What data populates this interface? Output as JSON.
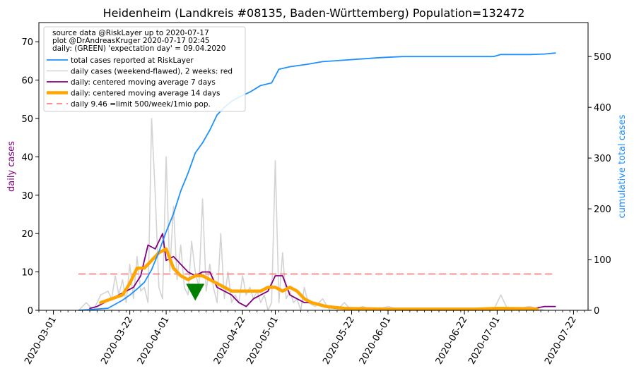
{
  "chart_data": {
    "type": "line",
    "title": "Heidenheim (Landkreis #08135, Baden-Württemberg) Population=132472",
    "ylabel_left": "daily cases",
    "ylabel_right": "cumulative total cases",
    "ylim_left": [
      0,
      75
    ],
    "ylim_right": [
      0,
      567
    ],
    "xlim": [
      "2020-02-26",
      "2020-07-26"
    ],
    "grid": false,
    "legend_placement": "top-left",
    "yticks_left": [
      "0",
      "10",
      "20",
      "30",
      "40",
      "50",
      "60",
      "70"
    ],
    "yticks_right": [
      "0",
      "100",
      "200",
      "300",
      "400",
      "500"
    ],
    "xticks": [
      "2020-03-01",
      "2020-03-22",
      "2020-04-01",
      "2020-04-22",
      "2020-05-01",
      "2020-05-22",
      "2020-06-01",
      "2020-06-22",
      "2020-07-01",
      "2020-07-22"
    ],
    "legend_header": [
      "source data @RiskLayer up to 2020-07-17",
      "plot @DrAndreasKruger 2020-07-17 02:45",
      "daily: (GREEN) 'expectation day' = 09.04.2020"
    ],
    "series": [
      {
        "name": "total cases reported at RiskLayer",
        "axis": "right",
        "color": "#1e90ff",
        "points": [
          [
            "2020-03-08",
            0
          ],
          [
            "2020-03-12",
            2
          ],
          [
            "2020-03-16",
            4
          ],
          [
            "2020-03-18",
            12
          ],
          [
            "2020-03-20",
            20
          ],
          [
            "2020-03-22",
            30
          ],
          [
            "2020-03-24",
            42
          ],
          [
            "2020-03-26",
            55
          ],
          [
            "2020-03-28",
            80
          ],
          [
            "2020-03-30",
            115
          ],
          [
            "2020-04-01",
            155
          ],
          [
            "2020-04-03",
            190
          ],
          [
            "2020-04-05",
            235
          ],
          [
            "2020-04-07",
            270
          ],
          [
            "2020-04-09",
            310
          ],
          [
            "2020-04-11",
            330
          ],
          [
            "2020-04-13",
            355
          ],
          [
            "2020-04-15",
            385
          ],
          [
            "2020-04-17",
            400
          ],
          [
            "2020-04-19",
            412
          ],
          [
            "2020-04-21",
            420
          ],
          [
            "2020-04-24",
            430
          ],
          [
            "2020-04-27",
            443
          ],
          [
            "2020-04-30",
            448
          ],
          [
            "2020-05-02",
            475
          ],
          [
            "2020-05-05",
            480
          ],
          [
            "2020-05-10",
            485
          ],
          [
            "2020-05-14",
            490
          ],
          [
            "2020-05-18",
            492
          ],
          [
            "2020-05-24",
            495
          ],
          [
            "2020-05-30",
            498
          ],
          [
            "2020-06-05",
            500
          ],
          [
            "2020-06-20",
            500
          ],
          [
            "2020-06-30",
            500
          ],
          [
            "2020-07-02",
            504
          ],
          [
            "2020-07-10",
            504
          ],
          [
            "2020-07-14",
            505
          ],
          [
            "2020-07-17",
            507
          ]
        ]
      },
      {
        "name": "daily cases (weekend-flawed), 2 weeks: red",
        "axis": "left",
        "color": "#d3d3d3",
        "points": [
          [
            "2020-03-08",
            0
          ],
          [
            "2020-03-10",
            2
          ],
          [
            "2020-03-12",
            0
          ],
          [
            "2020-03-14",
            4
          ],
          [
            "2020-03-16",
            5
          ],
          [
            "2020-03-17",
            3
          ],
          [
            "2020-03-18",
            9
          ],
          [
            "2020-03-19",
            4
          ],
          [
            "2020-03-20",
            8
          ],
          [
            "2020-03-21",
            2
          ],
          [
            "2020-03-22",
            12
          ],
          [
            "2020-03-23",
            3
          ],
          [
            "2020-03-24",
            14
          ],
          [
            "2020-03-25",
            5
          ],
          [
            "2020-03-26",
            6
          ],
          [
            "2020-03-27",
            2
          ],
          [
            "2020-03-28",
            50
          ],
          [
            "2020-03-29",
            30
          ],
          [
            "2020-03-30",
            6
          ],
          [
            "2020-03-31",
            3
          ],
          [
            "2020-04-01",
            40
          ],
          [
            "2020-04-02",
            10
          ],
          [
            "2020-04-03",
            27
          ],
          [
            "2020-04-04",
            8
          ],
          [
            "2020-04-05",
            17
          ],
          [
            "2020-04-06",
            6
          ],
          [
            "2020-04-07",
            4
          ],
          [
            "2020-04-08",
            18
          ],
          [
            "2020-04-09",
            10
          ],
          [
            "2020-04-10",
            6
          ],
          [
            "2020-04-11",
            29
          ],
          [
            "2020-04-12",
            5
          ],
          [
            "2020-04-13",
            12
          ],
          [
            "2020-04-14",
            6
          ],
          [
            "2020-04-15",
            2
          ],
          [
            "2020-04-16",
            20
          ],
          [
            "2020-04-17",
            3
          ],
          [
            "2020-04-18",
            10
          ],
          [
            "2020-04-19",
            2
          ],
          [
            "2020-04-20",
            4
          ],
          [
            "2020-04-21",
            2
          ],
          [
            "2020-04-22",
            9
          ],
          [
            "2020-04-23",
            4
          ],
          [
            "2020-04-24",
            6
          ],
          [
            "2020-04-25",
            3
          ],
          [
            "2020-04-26",
            5
          ],
          [
            "2020-04-27",
            2
          ],
          [
            "2020-04-28",
            4
          ],
          [
            "2020-04-29",
            0
          ],
          [
            "2020-04-30",
            2
          ],
          [
            "2020-05-01",
            39
          ],
          [
            "2020-05-02",
            2
          ],
          [
            "2020-05-03",
            15
          ],
          [
            "2020-05-04",
            3
          ],
          [
            "2020-05-05",
            5
          ],
          [
            "2020-05-06",
            2
          ],
          [
            "2020-05-07",
            3
          ],
          [
            "2020-05-08",
            0
          ],
          [
            "2020-05-09",
            6
          ],
          [
            "2020-05-10",
            2
          ],
          [
            "2020-05-12",
            1
          ],
          [
            "2020-05-14",
            3
          ],
          [
            "2020-05-16",
            0
          ],
          [
            "2020-05-18",
            0
          ],
          [
            "2020-05-20",
            2
          ],
          [
            "2020-05-22",
            0
          ],
          [
            "2020-05-25",
            1
          ],
          [
            "2020-05-28",
            0
          ],
          [
            "2020-06-01",
            1
          ],
          [
            "2020-06-05",
            0
          ],
          [
            "2020-06-30",
            0
          ],
          [
            "2020-07-02",
            4
          ],
          [
            "2020-07-04",
            0
          ],
          [
            "2020-07-10",
            1
          ],
          [
            "2020-07-14",
            0
          ]
        ]
      },
      {
        "name": "daily: centered moving average 7 days",
        "axis": "left",
        "color": "#800080",
        "points": [
          [
            "2020-03-11",
            0.5
          ],
          [
            "2020-03-13",
            1
          ],
          [
            "2020-03-15",
            2
          ],
          [
            "2020-03-17",
            3
          ],
          [
            "2020-03-19",
            4
          ],
          [
            "2020-03-21",
            5
          ],
          [
            "2020-03-23",
            6
          ],
          [
            "2020-03-25",
            9
          ],
          [
            "2020-03-27",
            17
          ],
          [
            "2020-03-29",
            16
          ],
          [
            "2020-03-31",
            20
          ],
          [
            "2020-04-01",
            13
          ],
          [
            "2020-04-03",
            14
          ],
          [
            "2020-04-05",
            12
          ],
          [
            "2020-04-07",
            10
          ],
          [
            "2020-04-09",
            9
          ],
          [
            "2020-04-11",
            10
          ],
          [
            "2020-04-13",
            10
          ],
          [
            "2020-04-15",
            6
          ],
          [
            "2020-04-17",
            5
          ],
          [
            "2020-04-19",
            4
          ],
          [
            "2020-04-21",
            2
          ],
          [
            "2020-04-23",
            1
          ],
          [
            "2020-04-25",
            3
          ],
          [
            "2020-04-27",
            4
          ],
          [
            "2020-04-29",
            5
          ],
          [
            "2020-05-01",
            9
          ],
          [
            "2020-05-03",
            9
          ],
          [
            "2020-05-05",
            4
          ],
          [
            "2020-05-07",
            3
          ],
          [
            "2020-05-09",
            2
          ],
          [
            "2020-05-11",
            2
          ],
          [
            "2020-05-15",
            1
          ],
          [
            "2020-05-20",
            0.5
          ],
          [
            "2020-06-10",
            0.2
          ],
          [
            "2020-07-10",
            0.3
          ],
          [
            "2020-07-14",
            1
          ],
          [
            "2020-07-17",
            1
          ]
        ]
      },
      {
        "name": "daily: centered moving average 14 days",
        "axis": "left",
        "color": "#ffa500",
        "points": [
          [
            "2020-03-14",
            2
          ],
          [
            "2020-03-17",
            3
          ],
          [
            "2020-03-20",
            4
          ],
          [
            "2020-03-22",
            7
          ],
          [
            "2020-03-24",
            11
          ],
          [
            "2020-03-26",
            11
          ],
          [
            "2020-03-28",
            13
          ],
          [
            "2020-03-30",
            15
          ],
          [
            "2020-04-01",
            16
          ],
          [
            "2020-04-03",
            11
          ],
          [
            "2020-04-05",
            9
          ],
          [
            "2020-04-07",
            8
          ],
          [
            "2020-04-09",
            9
          ],
          [
            "2020-04-11",
            9
          ],
          [
            "2020-04-13",
            8
          ],
          [
            "2020-04-15",
            7
          ],
          [
            "2020-04-17",
            6
          ],
          [
            "2020-04-19",
            5
          ],
          [
            "2020-04-21",
            5
          ],
          [
            "2020-04-23",
            5
          ],
          [
            "2020-04-25",
            5
          ],
          [
            "2020-04-27",
            5
          ],
          [
            "2020-04-29",
            6
          ],
          [
            "2020-05-01",
            6
          ],
          [
            "2020-05-03",
            5
          ],
          [
            "2020-05-05",
            6
          ],
          [
            "2020-05-07",
            5
          ],
          [
            "2020-05-09",
            3
          ],
          [
            "2020-05-11",
            2
          ],
          [
            "2020-05-15",
            1
          ],
          [
            "2020-05-20",
            0.5
          ],
          [
            "2020-06-01",
            0.3
          ],
          [
            "2020-06-25",
            0.3
          ],
          [
            "2020-07-01",
            0.5
          ],
          [
            "2020-07-10",
            0.4
          ],
          [
            "2020-07-12",
            0.3
          ]
        ]
      },
      {
        "name": "daily 9.46 =limit 500/week/1mio pop.",
        "axis": "left",
        "color": "#ff6b6b",
        "dashed": true,
        "points": [
          [
            "2020-03-08",
            9.46
          ],
          [
            "2020-07-17",
            9.46
          ]
        ]
      }
    ],
    "marker": {
      "date": "2020-04-09",
      "value": 2.5,
      "color": "#008000",
      "shape": "triangle-down"
    }
  }
}
